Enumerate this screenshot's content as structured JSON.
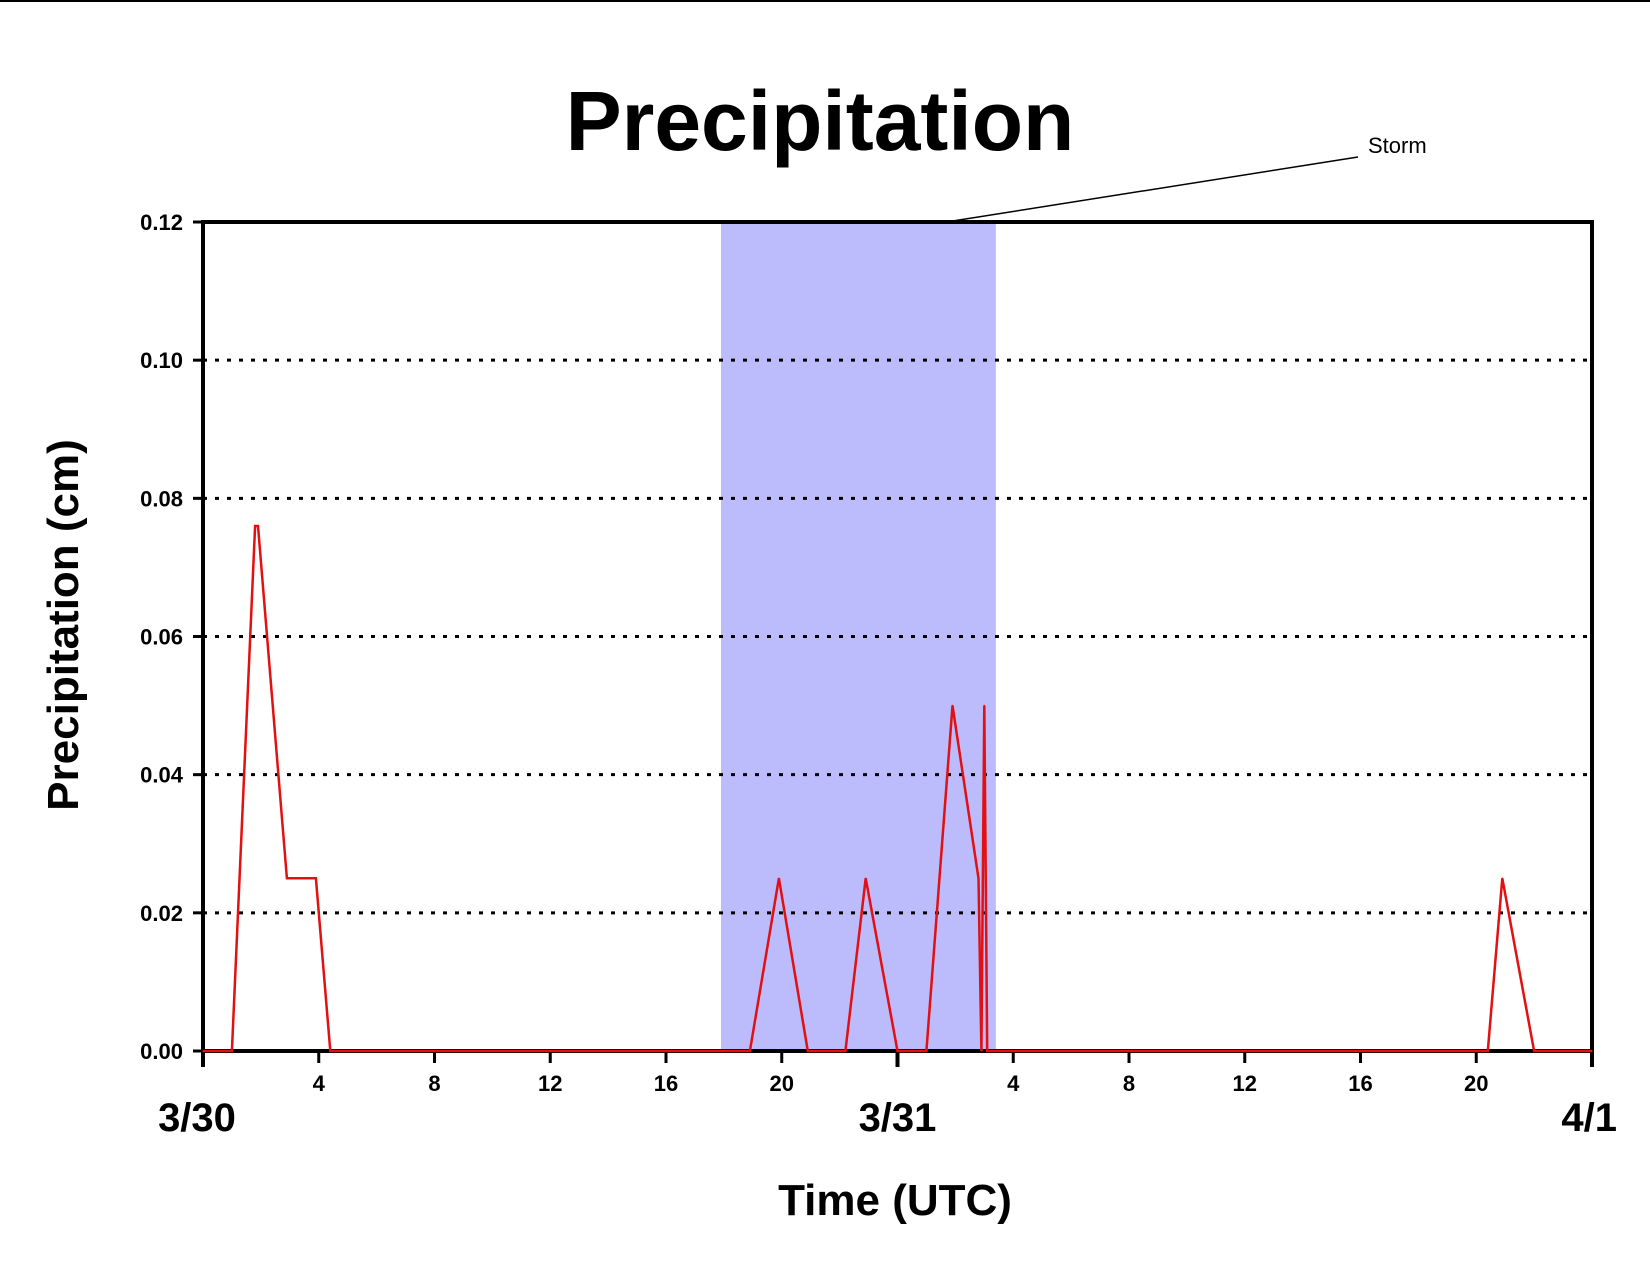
{
  "chart_data": {
    "type": "line",
    "title": "Precipitation",
    "ylabel": "Precipitation (cm)",
    "xlabel": "Time (UTC)",
    "xlim_hours": [
      0,
      48
    ],
    "ylim": [
      0,
      0.12
    ],
    "yticks": [
      0.0,
      0.02,
      0.04,
      0.06,
      0.08,
      0.1,
      0.12
    ],
    "ytick_labels": [
      "0.00",
      "0.02",
      "0.04",
      "0.06",
      "0.08",
      "0.10",
      "0.12"
    ],
    "xticks_hours": [
      4,
      8,
      12,
      16,
      20,
      28,
      32,
      36,
      40,
      44
    ],
    "xtick_labels": [
      "4",
      "8",
      "12",
      "16",
      "20",
      "4",
      "8",
      "12",
      "16",
      "20"
    ],
    "date_labels": [
      {
        "label": "3/30",
        "hour": 0
      },
      {
        "label": "3/31",
        "hour": 24
      },
      {
        "label": "4/1",
        "hour": 48
      }
    ],
    "grid": "horizontal-dotted",
    "storm_band": {
      "start_hour": 17.9,
      "end_hour": 27.4,
      "color": "#bcbcfc",
      "label": "Storm"
    },
    "series": [
      {
        "color": "#e21010",
        "x": [
          0,
          1,
          1.8,
          1.9,
          2.9,
          3.9,
          4.4,
          18.9,
          19.9,
          20.9,
          22.2,
          22.9,
          24.0,
          25.0,
          25.9,
          26.8,
          26.9,
          27.0,
          27.1,
          27.2,
          44.4,
          44.9,
          46.0,
          48
        ],
        "y": [
          0,
          0,
          0.076,
          0.076,
          0.025,
          0.025,
          0,
          0,
          0.025,
          0,
          0,
          0.025,
          0,
          0,
          0.05,
          0.025,
          0,
          0.05,
          0,
          0,
          0,
          0.025,
          0,
          0
        ]
      }
    ]
  }
}
